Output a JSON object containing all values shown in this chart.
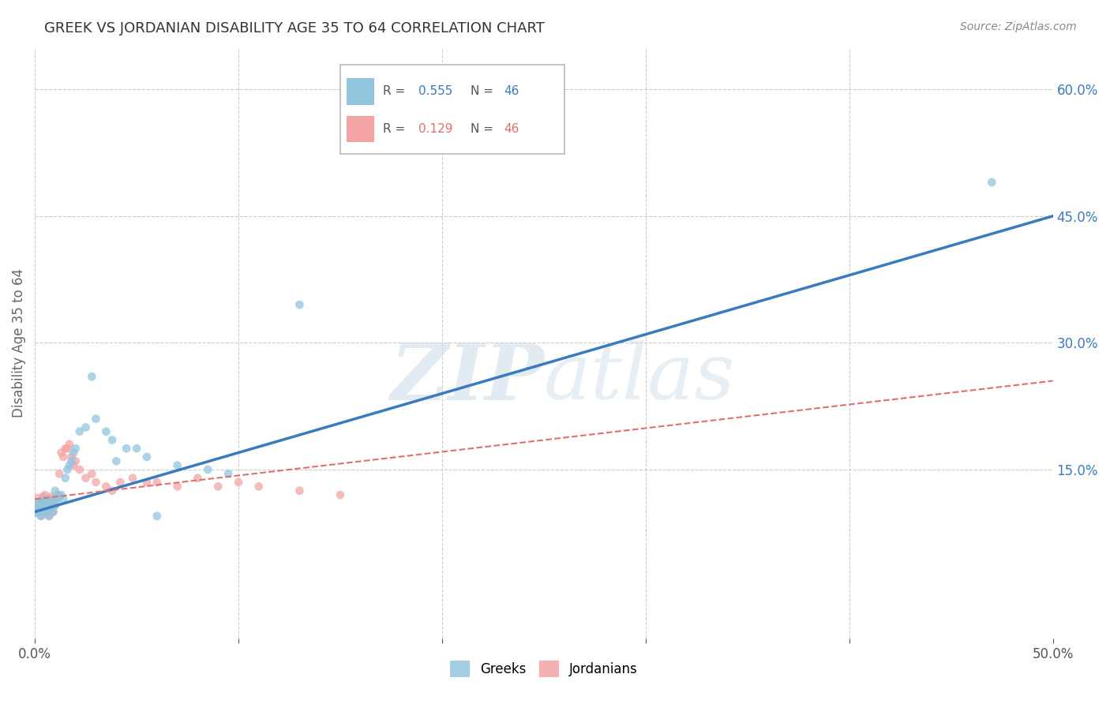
{
  "title": "GREEK VS JORDANIAN DISABILITY AGE 35 TO 64 CORRELATION CHART",
  "source": "Source: ZipAtlas.com",
  "ylabel": "Disability Age 35 to 64",
  "xlim": [
    0.0,
    0.5
  ],
  "ylim": [
    -0.05,
    0.65
  ],
  "xticks": [
    0.0,
    0.1,
    0.2,
    0.3,
    0.4,
    0.5
  ],
  "ytick_positions": [
    0.15,
    0.3,
    0.45,
    0.6
  ],
  "ytick_labels": [
    "15.0%",
    "30.0%",
    "45.0%",
    "60.0%"
  ],
  "greek_R": "0.555",
  "greek_N": "46",
  "jordan_R": "0.129",
  "jordan_N": "46",
  "greek_color": "#92c5de",
  "jordan_color": "#f4a4a4",
  "greek_line_color": "#3a7abf",
  "jordan_line_color": "#e07070",
  "background": "#ffffff",
  "grid_color": "#cccccc",
  "watermark_color": "#cddce8",
  "greek_line_x0": 0.0,
  "greek_line_y0": 0.1,
  "greek_line_x1": 0.5,
  "greek_line_y1": 0.45,
  "jordan_line_x0": 0.0,
  "jordan_line_y0": 0.115,
  "jordan_line_x1": 0.5,
  "jordan_line_y1": 0.255,
  "greek_x": [
    0.001,
    0.002,
    0.002,
    0.003,
    0.003,
    0.004,
    0.004,
    0.005,
    0.005,
    0.006,
    0.006,
    0.007,
    0.007,
    0.008,
    0.008,
    0.009,
    0.009,
    0.01,
    0.01,
    0.011,
    0.012,
    0.013,
    0.014,
    0.015,
    0.016,
    0.017,
    0.018,
    0.019,
    0.02,
    0.022,
    0.025,
    0.028,
    0.03,
    0.035,
    0.038,
    0.04,
    0.045,
    0.05,
    0.055,
    0.06,
    0.07,
    0.085,
    0.095,
    0.13,
    0.2,
    0.47
  ],
  "greek_y": [
    0.105,
    0.11,
    0.1,
    0.108,
    0.095,
    0.112,
    0.1,
    0.115,
    0.105,
    0.108,
    0.1,
    0.112,
    0.095,
    0.11,
    0.105,
    0.1,
    0.115,
    0.108,
    0.125,
    0.115,
    0.118,
    0.12,
    0.115,
    0.14,
    0.15,
    0.155,
    0.16,
    0.17,
    0.175,
    0.195,
    0.2,
    0.26,
    0.21,
    0.195,
    0.185,
    0.16,
    0.175,
    0.175,
    0.165,
    0.095,
    0.155,
    0.15,
    0.145,
    0.345,
    0.565,
    0.49
  ],
  "greek_sizes": [
    300,
    80,
    60,
    60,
    60,
    60,
    60,
    60,
    60,
    60,
    60,
    60,
    60,
    60,
    60,
    60,
    60,
    60,
    60,
    60,
    60,
    60,
    60,
    60,
    60,
    60,
    60,
    60,
    60,
    60,
    60,
    60,
    60,
    60,
    60,
    60,
    60,
    60,
    60,
    60,
    60,
    60,
    60,
    60,
    60,
    60
  ],
  "jordan_x": [
    0.001,
    0.002,
    0.002,
    0.003,
    0.003,
    0.004,
    0.004,
    0.005,
    0.005,
    0.006,
    0.006,
    0.007,
    0.007,
    0.008,
    0.008,
    0.009,
    0.009,
    0.01,
    0.01,
    0.011,
    0.012,
    0.013,
    0.014,
    0.015,
    0.016,
    0.017,
    0.018,
    0.019,
    0.02,
    0.022,
    0.025,
    0.028,
    0.03,
    0.035,
    0.038,
    0.042,
    0.048,
    0.055,
    0.06,
    0.07,
    0.08,
    0.09,
    0.1,
    0.11,
    0.13,
    0.15
  ],
  "jordan_y": [
    0.11,
    0.108,
    0.1,
    0.112,
    0.095,
    0.118,
    0.105,
    0.12,
    0.108,
    0.115,
    0.1,
    0.115,
    0.095,
    0.118,
    0.108,
    0.112,
    0.1,
    0.115,
    0.108,
    0.12,
    0.145,
    0.17,
    0.165,
    0.175,
    0.175,
    0.18,
    0.165,
    0.155,
    0.16,
    0.15,
    0.14,
    0.145,
    0.135,
    0.13,
    0.125,
    0.135,
    0.14,
    0.135,
    0.135,
    0.13,
    0.14,
    0.13,
    0.135,
    0.13,
    0.125,
    0.12
  ],
  "jordan_sizes": [
    300,
    60,
    60,
    60,
    60,
    60,
    60,
    60,
    60,
    60,
    60,
    60,
    60,
    60,
    60,
    60,
    60,
    60,
    60,
    60,
    60,
    60,
    60,
    60,
    60,
    60,
    60,
    60,
    60,
    60,
    60,
    60,
    60,
    60,
    60,
    60,
    60,
    60,
    60,
    60,
    60,
    60,
    60,
    60,
    60,
    60
  ]
}
